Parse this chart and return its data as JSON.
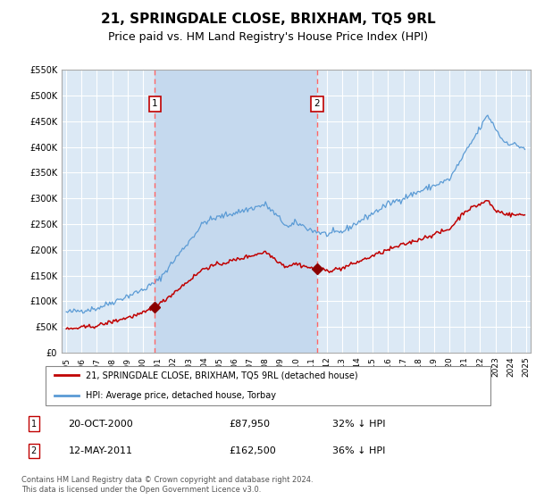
{
  "title": "21, SPRINGDALE CLOSE, BRIXHAM, TQ5 9RL",
  "subtitle": "Price paid vs. HM Land Registry's House Price Index (HPI)",
  "title_fontsize": 11,
  "subtitle_fontsize": 9,
  "background_color": "#ffffff",
  "plot_bg_color": "#dce9f5",
  "grid_color": "#ffffff",
  "shade_color": "#c5d9ee",
  "ylim": [
    0,
    550000
  ],
  "yticks": [
    0,
    50000,
    100000,
    150000,
    200000,
    250000,
    300000,
    350000,
    400000,
    450000,
    500000,
    550000
  ],
  "ytick_labels": [
    "£0",
    "£50K",
    "£100K",
    "£150K",
    "£200K",
    "£250K",
    "£300K",
    "£350K",
    "£400K",
    "£450K",
    "£500K",
    "£550K"
  ],
  "xlim_start": 1994.7,
  "xlim_end": 2025.3,
  "hpi_color": "#5b9bd5",
  "price_color": "#c00000",
  "marker_color": "#8b0000",
  "dashed_line_color": "#ff6666",
  "sale1_x": 2000.79,
  "sale1_y": 87950,
  "sale2_x": 2011.36,
  "sale2_y": 162500,
  "sale1_label": "1",
  "sale2_label": "2",
  "legend_label_red": "21, SPRINGDALE CLOSE, BRIXHAM, TQ5 9RL (detached house)",
  "legend_label_blue": "HPI: Average price, detached house, Torbay",
  "table_row1": [
    "1",
    "20-OCT-2000",
    "£87,950",
    "32% ↓ HPI"
  ],
  "table_row2": [
    "2",
    "12-MAY-2011",
    "£162,500",
    "36% ↓ HPI"
  ],
  "footnote": "Contains HM Land Registry data © Crown copyright and database right 2024.\nThis data is licensed under the Open Government Licence v3.0."
}
